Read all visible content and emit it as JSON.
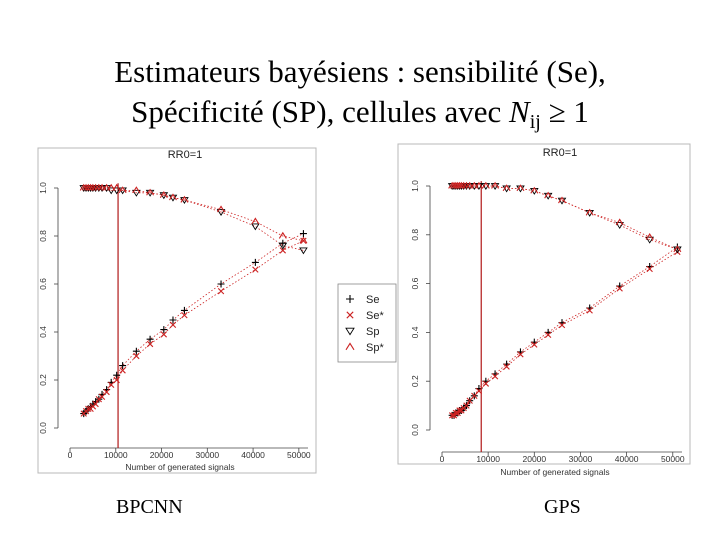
{
  "title": {
    "line1": "Estimateurs bayésiens : sensibilité (Se),",
    "line2_prefix": "Spécificité (SP), cellules avec ",
    "line2_var": "N",
    "line2_sub": "ij",
    "line2_suffix": " ≥ 1"
  },
  "captions": {
    "left": "BPCNN",
    "right": "GPS"
  },
  "legend": {
    "items": [
      "Se",
      "Se*",
      "Sp",
      "Sp*"
    ]
  },
  "colors": {
    "black_series": "#000000",
    "red_series": "#cc2222",
    "vline": "#b01818",
    "axis": "#444444"
  },
  "chart_data": [
    {
      "type": "scatter",
      "title": "RR0=1",
      "xlabel": "Number of generated signals",
      "ylabel": "",
      "xlim": [
        0,
        52000
      ],
      "ylim": [
        0,
        1
      ],
      "x_ticks": [
        "0",
        "10000",
        "20000",
        "30000",
        "40000",
        "50000"
      ],
      "y_ticks": [
        "0.0",
        "0.2",
        "0.4",
        "0.6",
        "0.8",
        "1.0"
      ],
      "vline": 10500,
      "x": [
        3000,
        3500,
        4000,
        4500,
        5000,
        5600,
        6300,
        7000,
        8000,
        9000,
        10200,
        11500,
        14500,
        17500,
        20500,
        22500,
        25000,
        33000,
        40500,
        46500,
        51000
      ],
      "series": [
        {
          "name": "Se",
          "marker": "plus",
          "values": [
            0.06,
            0.07,
            0.08,
            0.09,
            0.1,
            0.11,
            0.12,
            0.14,
            0.16,
            0.19,
            0.22,
            0.26,
            0.32,
            0.37,
            0.41,
            0.45,
            0.49,
            0.6,
            0.69,
            0.77,
            0.81
          ]
        },
        {
          "name": "Se*",
          "marker": "cross",
          "values": [
            0.06,
            0.07,
            0.08,
            0.08,
            0.09,
            0.1,
            0.12,
            0.13,
            0.15,
            0.18,
            0.2,
            0.24,
            0.3,
            0.35,
            0.39,
            0.43,
            0.47,
            0.57,
            0.66,
            0.74,
            0.78
          ]
        },
        {
          "name": "Sp",
          "marker": "triangle",
          "values": [
            1.0,
            1.0,
            1.0,
            1.0,
            1.0,
            1.0,
            1.0,
            1.0,
            1.0,
            0.99,
            0.99,
            0.99,
            0.98,
            0.98,
            0.97,
            0.96,
            0.95,
            0.9,
            0.84,
            0.76,
            0.74
          ]
        },
        {
          "name": "Sp*",
          "marker": "caret",
          "values": [
            1.0,
            1.0,
            1.0,
            1.0,
            1.0,
            1.0,
            1.0,
            1.0,
            1.0,
            1.0,
            1.0,
            0.99,
            0.99,
            0.98,
            0.97,
            0.96,
            0.95,
            0.91,
            0.86,
            0.8,
            0.78
          ]
        }
      ]
    },
    {
      "type": "scatter",
      "title": "RR0=1",
      "xlabel": "Number of generated signals",
      "ylabel": "",
      "xlim": [
        0,
        52000
      ],
      "ylim": [
        0,
        1
      ],
      "x_ticks": [
        "0",
        "10000",
        "20000",
        "30000",
        "40000",
        "50000"
      ],
      "y_ticks": [
        "0.0",
        "0.2",
        "0.4",
        "0.6",
        "0.8",
        "1.0"
      ],
      "vline": 8500,
      "x": [
        2200,
        2600,
        3000,
        3400,
        3800,
        4200,
        4700,
        5300,
        6000,
        7000,
        8000,
        9500,
        11500,
        14000,
        17000,
        20000,
        23000,
        26000,
        32000,
        38500,
        45000,
        51000
      ],
      "series": [
        {
          "name": "Se",
          "marker": "plus",
          "values": [
            0.06,
            0.06,
            0.07,
            0.07,
            0.08,
            0.08,
            0.09,
            0.1,
            0.12,
            0.14,
            0.17,
            0.2,
            0.23,
            0.27,
            0.32,
            0.36,
            0.4,
            0.44,
            0.5,
            0.59,
            0.67,
            0.75
          ]
        },
        {
          "name": "Se*",
          "marker": "cross",
          "values": [
            0.06,
            0.06,
            0.07,
            0.07,
            0.08,
            0.08,
            0.09,
            0.1,
            0.12,
            0.14,
            0.16,
            0.19,
            0.22,
            0.26,
            0.31,
            0.35,
            0.39,
            0.43,
            0.49,
            0.58,
            0.66,
            0.73
          ]
        },
        {
          "name": "Sp",
          "marker": "triangle",
          "values": [
            1.0,
            1.0,
            1.0,
            1.0,
            1.0,
            1.0,
            1.0,
            1.0,
            1.0,
            1.0,
            1.0,
            1.0,
            1.0,
            0.99,
            0.99,
            0.98,
            0.96,
            0.94,
            0.89,
            0.84,
            0.78,
            0.74
          ]
        },
        {
          "name": "Sp*",
          "marker": "caret",
          "values": [
            1.0,
            1.0,
            1.0,
            1.0,
            1.0,
            1.0,
            1.0,
            1.0,
            1.0,
            1.0,
            1.0,
            1.0,
            1.0,
            0.99,
            0.99,
            0.98,
            0.96,
            0.94,
            0.89,
            0.85,
            0.79,
            0.74
          ]
        }
      ]
    }
  ]
}
